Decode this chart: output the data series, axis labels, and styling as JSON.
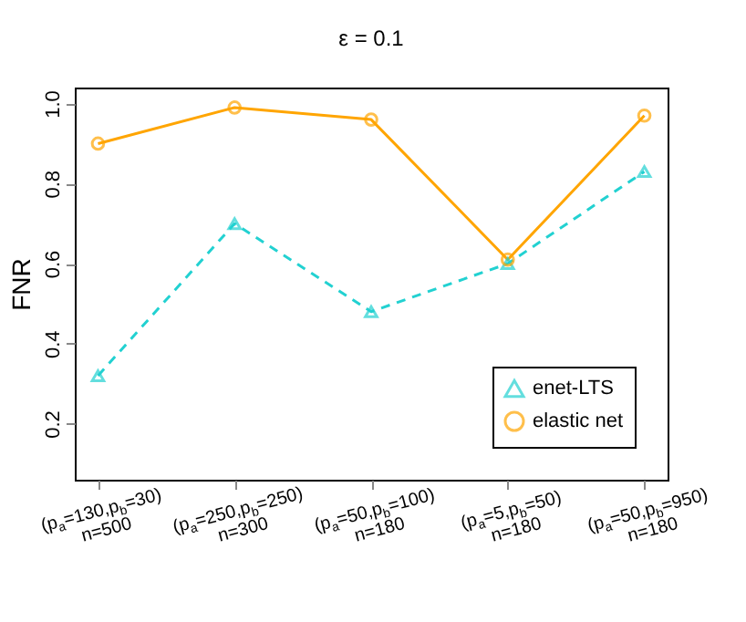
{
  "chart_data": {
    "type": "line",
    "title": "ε = 0.1",
    "ylabel": "FNR",
    "categories": [
      "(p$_{a}$=130,p$_{b}$=30)\nn=500",
      "(p$_{a}$=250,p$_{b}$=250)\nn=300",
      "(p$_{a}$=50,p$_{b}$=100)\nn=180",
      "(p$_{a}$=5,p$_{b}$=50)\nn=180",
      "(p$_{a}$=50,p$_{b}$=950)\nn=180"
    ],
    "series": [
      {
        "name": "enet-LTS",
        "color": "#22d1d1",
        "values": [
          0.32,
          0.7,
          0.48,
          0.6,
          0.83
        ],
        "line_style": "dashed",
        "marker": "triangle"
      },
      {
        "name": "elastic net",
        "color": "#ffa500",
        "values": [
          0.9,
          0.99,
          0.96,
          0.61,
          0.97
        ],
        "line_style": "solid",
        "marker": "circle"
      }
    ],
    "ylim": [
      0.06,
      1.04
    ],
    "yticks": [
      0.2,
      0.4,
      0.6,
      0.8,
      {
        "value": 1.0,
        "label": "1.0"
      }
    ],
    "grid": false,
    "legend": "bottom right"
  }
}
